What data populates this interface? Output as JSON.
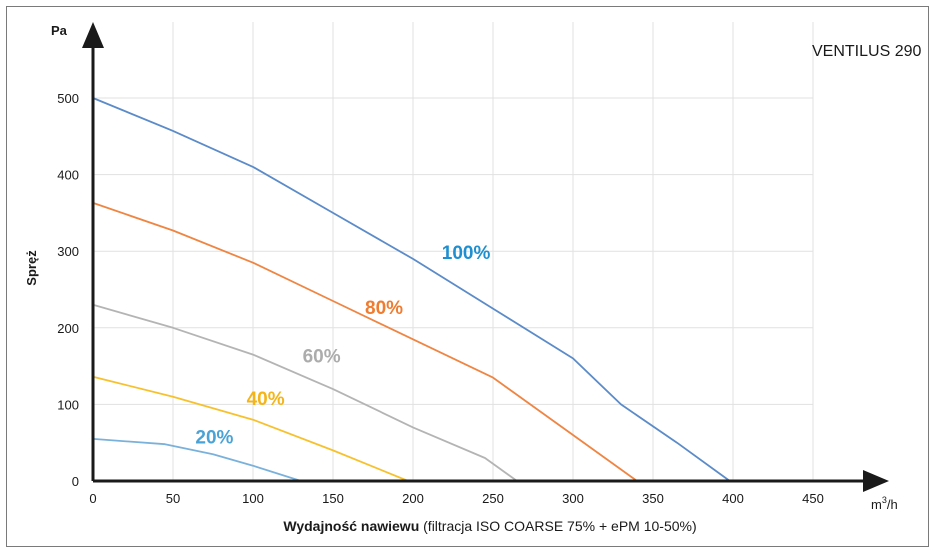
{
  "chart_data": {
    "type": "line",
    "title": "VENTILUS 290",
    "xlabel_bold": "Wydajność nawiewu",
    "xlabel_rest": " (filtracja ISO COARSE 75% + ePM 10-50%)",
    "x_unit": "m",
    "x_unit_sup": "3",
    "x_unit_tail": "/h",
    "y_unit": "Pa",
    "ylabel": "Spręż",
    "xlim": [
      0,
      450
    ],
    "ylim": [
      0,
      500
    ],
    "x_ticks": [
      0,
      50,
      100,
      150,
      200,
      250,
      300,
      350,
      400,
      450
    ],
    "y_ticks": [
      0,
      100,
      200,
      300,
      400,
      500
    ],
    "grid": true,
    "series": [
      {
        "name": "100%",
        "color": "#5b8bc9",
        "label_color": "#1e8fd0",
        "label_at": [
          218,
          290
        ],
        "points": [
          [
            0,
            500
          ],
          [
            50,
            457
          ],
          [
            100,
            410
          ],
          [
            150,
            350
          ],
          [
            200,
            290
          ],
          [
            250,
            225
          ],
          [
            300,
            160
          ],
          [
            330,
            100
          ],
          [
            365,
            50
          ],
          [
            398,
            0
          ]
        ]
      },
      {
        "name": "80%",
        "color": "#ef8542",
        "label_color": "#f07c30",
        "label_at": [
          170,
          218
        ],
        "points": [
          [
            0,
            363
          ],
          [
            50,
            327
          ],
          [
            100,
            285
          ],
          [
            150,
            235
          ],
          [
            200,
            185
          ],
          [
            250,
            135
          ],
          [
            300,
            60
          ],
          [
            340,
            0
          ]
        ]
      },
      {
        "name": "60%",
        "color": "#b4b4b4",
        "label_color": "#acacac",
        "label_at": [
          131,
          155
        ],
        "points": [
          [
            0,
            230
          ],
          [
            50,
            200
          ],
          [
            100,
            165
          ],
          [
            150,
            120
          ],
          [
            200,
            70
          ],
          [
            245,
            30
          ],
          [
            265,
            0
          ]
        ]
      },
      {
        "name": "40%",
        "color": "#f7c12e",
        "label_color": "#f3b519",
        "label_at": [
          96,
          99
        ],
        "points": [
          [
            0,
            136
          ],
          [
            50,
            110
          ],
          [
            100,
            80
          ],
          [
            150,
            40
          ],
          [
            197,
            0
          ]
        ]
      },
      {
        "name": "20%",
        "color": "#7ab1db",
        "label_color": "#4aa3d6",
        "label_at": [
          64,
          49
        ],
        "points": [
          [
            0,
            55
          ],
          [
            45,
            48
          ],
          [
            75,
            35
          ],
          [
            100,
            20
          ],
          [
            130,
            0
          ]
        ]
      }
    ]
  }
}
